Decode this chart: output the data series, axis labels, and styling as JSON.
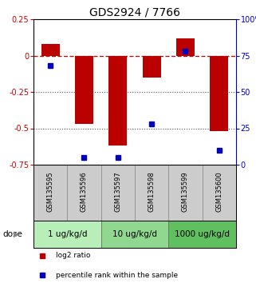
{
  "title": "GDS2924 / 7766",
  "samples": [
    "GSM135595",
    "GSM135596",
    "GSM135597",
    "GSM135598",
    "GSM135599",
    "GSM135600"
  ],
  "log2_ratio": [
    0.08,
    -0.47,
    -0.62,
    -0.15,
    0.12,
    -0.52
  ],
  "percentile_rank": [
    68,
    5,
    5,
    28,
    78,
    10
  ],
  "ylim_left": [
    -0.75,
    0.25
  ],
  "ylim_right": [
    0,
    100
  ],
  "yticks_left": [
    0.25,
    0.0,
    -0.25,
    -0.5,
    -0.75
  ],
  "yticks_right": [
    100,
    75,
    50,
    25,
    0
  ],
  "ytick_labels_left": [
    "0.25",
    "0",
    "-0.25",
    "-0.5",
    "-0.75"
  ],
  "ytick_labels_right": [
    "100%",
    "75",
    "50",
    "25",
    "0"
  ],
  "dose_groups": [
    {
      "label": "1 ug/kg/d",
      "samples": [
        0,
        1
      ],
      "color": "#b8eeb8"
    },
    {
      "label": "10 ug/kg/d",
      "samples": [
        2,
        3
      ],
      "color": "#90d890"
    },
    {
      "label": "1000 ug/kg/d",
      "samples": [
        4,
        5
      ],
      "color": "#60c060"
    }
  ],
  "bar_color": "#bb0000",
  "square_color": "#0000bb",
  "bar_width": 0.55,
  "zero_line_color": "#cc0000",
  "dotted_line_color": "#555555",
  "sample_box_color": "#cccccc",
  "legend_bar_label": "log2 ratio",
  "legend_sq_label": "percentile rank within the sample",
  "dose_label": "dose",
  "title_fontsize": 10,
  "tick_fontsize": 7,
  "sample_fontsize": 6,
  "dose_fontsize": 7.5,
  "legend_fontsize": 6.5
}
